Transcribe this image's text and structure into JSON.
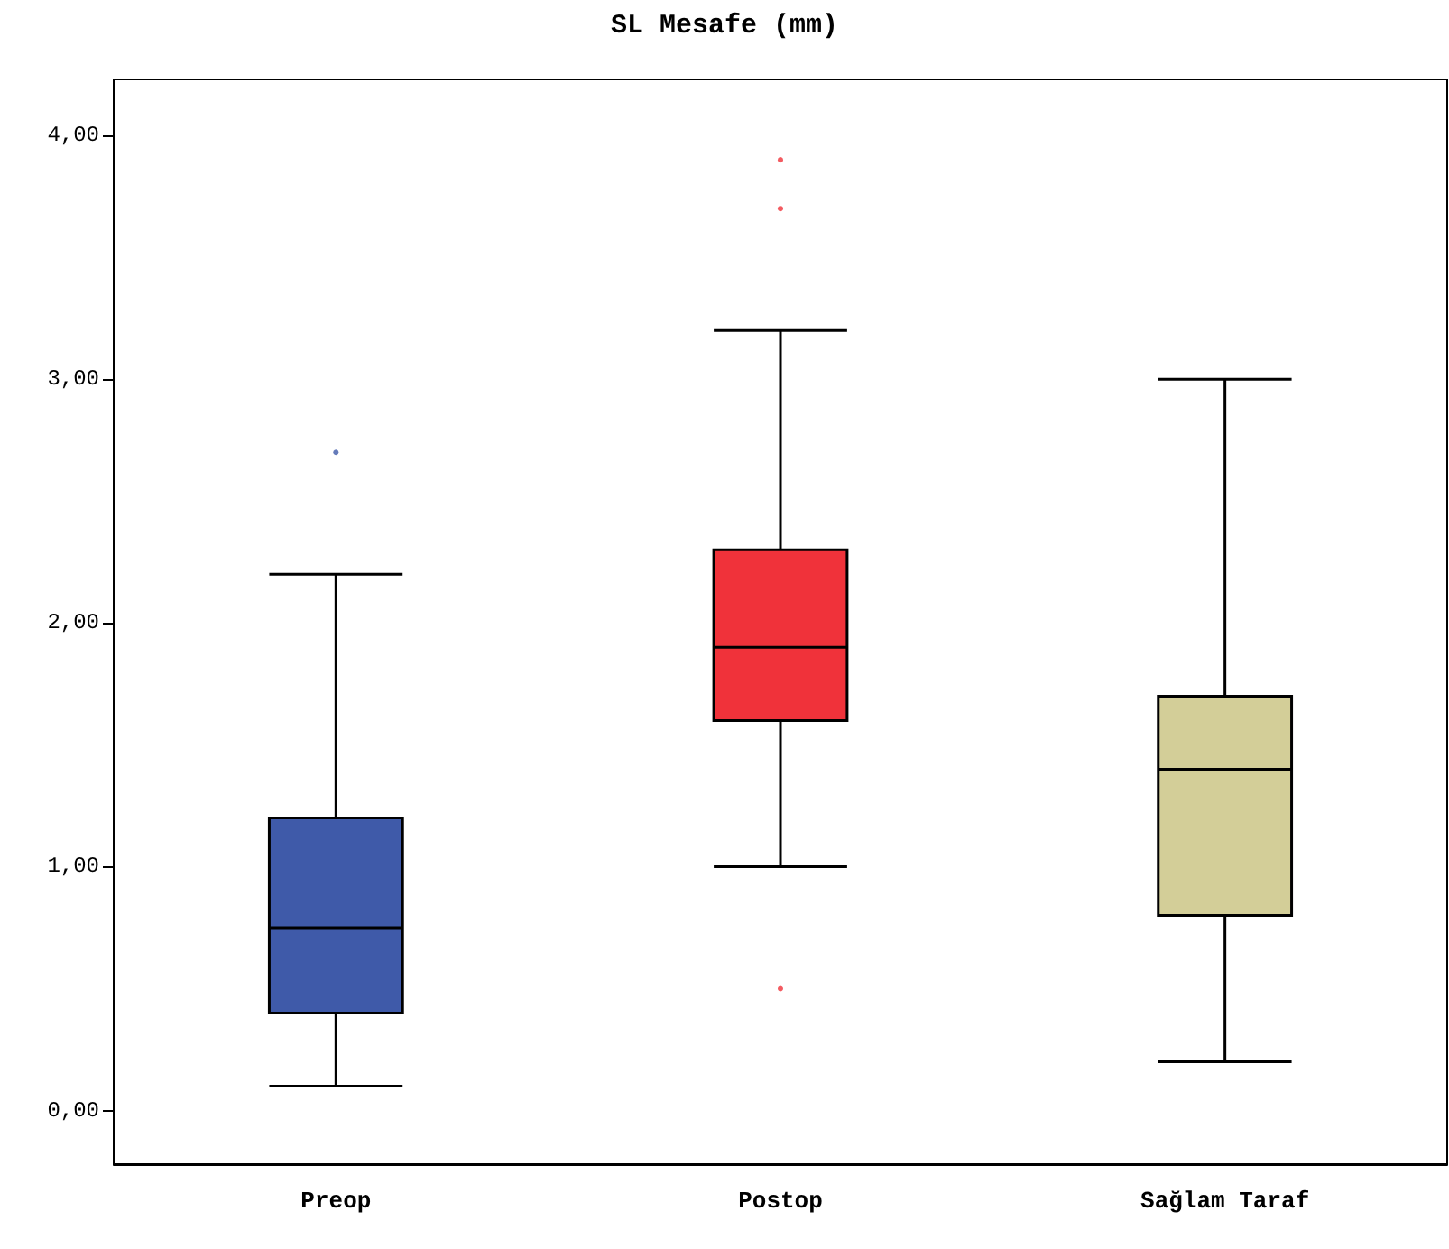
{
  "chart_data": {
    "type": "box",
    "title": "SL Mesafe (mm)",
    "categories": [
      "Preop",
      "Postop",
      "Sağlam Taraf"
    ],
    "colors": [
      "#3f5aa9",
      "#f0323a",
      "#d3ce98"
    ],
    "boxes": [
      {
        "low": 0.1,
        "q1": 0.4,
        "median": 0.75,
        "q3": 1.2,
        "high": 2.2,
        "outliers": [
          2.7
        ]
      },
      {
        "low": 1.0,
        "q1": 1.6,
        "median": 1.9,
        "q3": 2.3,
        "high": 3.2,
        "outliers": [
          3.9,
          3.7,
          0.5
        ]
      },
      {
        "low": 0.2,
        "q1": 0.8,
        "median": 1.4,
        "q3": 1.7,
        "high": 3.0
      }
    ],
    "ylim": [
      -0.22,
      4.23
    ],
    "yticks": [
      {
        "value": 0,
        "label": "0,00"
      },
      {
        "value": 1,
        "label": "1,00"
      },
      {
        "value": 2,
        "label": "2,00"
      },
      {
        "value": 3,
        "label": "3,00"
      },
      {
        "value": 4,
        "label": "4,00"
      }
    ],
    "grid": false
  }
}
